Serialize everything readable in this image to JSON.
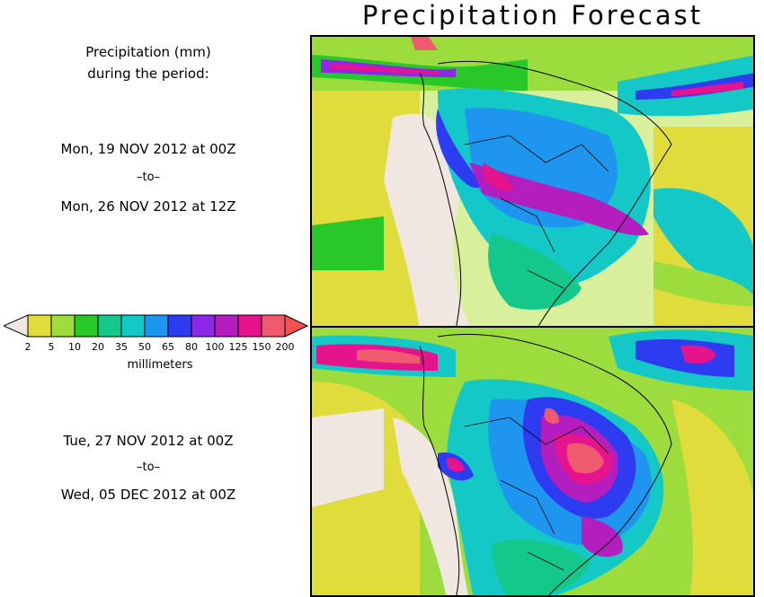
{
  "title": "Precipitation Forecast",
  "header": {
    "line1": "Precipitation (mm)",
    "line2": "during the period:"
  },
  "period1": {
    "start": "Mon, 19 NOV 2012 at 00Z",
    "sep": "–to–",
    "end": "Mon, 26 NOV 2012 at 12Z"
  },
  "period2": {
    "start": "Tue, 27 NOV 2012 at 00Z",
    "sep": "–to–",
    "end": "Wed, 05 DEC 2012 at 00Z"
  },
  "legend": {
    "units": "millimeters",
    "ticks": [
      "2",
      "5",
      "10",
      "20",
      "35",
      "50",
      "65",
      "80",
      "100",
      "125",
      "150",
      "200"
    ],
    "colors": [
      "#f0e8e0",
      "#e0dc3c",
      "#9cdc3c",
      "#28c828",
      "#14c88c",
      "#14c8c8",
      "#1e96f0",
      "#2d3cf0",
      "#8c28e6",
      "#b41ebe",
      "#e6148c",
      "#f05a6e",
      "#f55050"
    ]
  }
}
